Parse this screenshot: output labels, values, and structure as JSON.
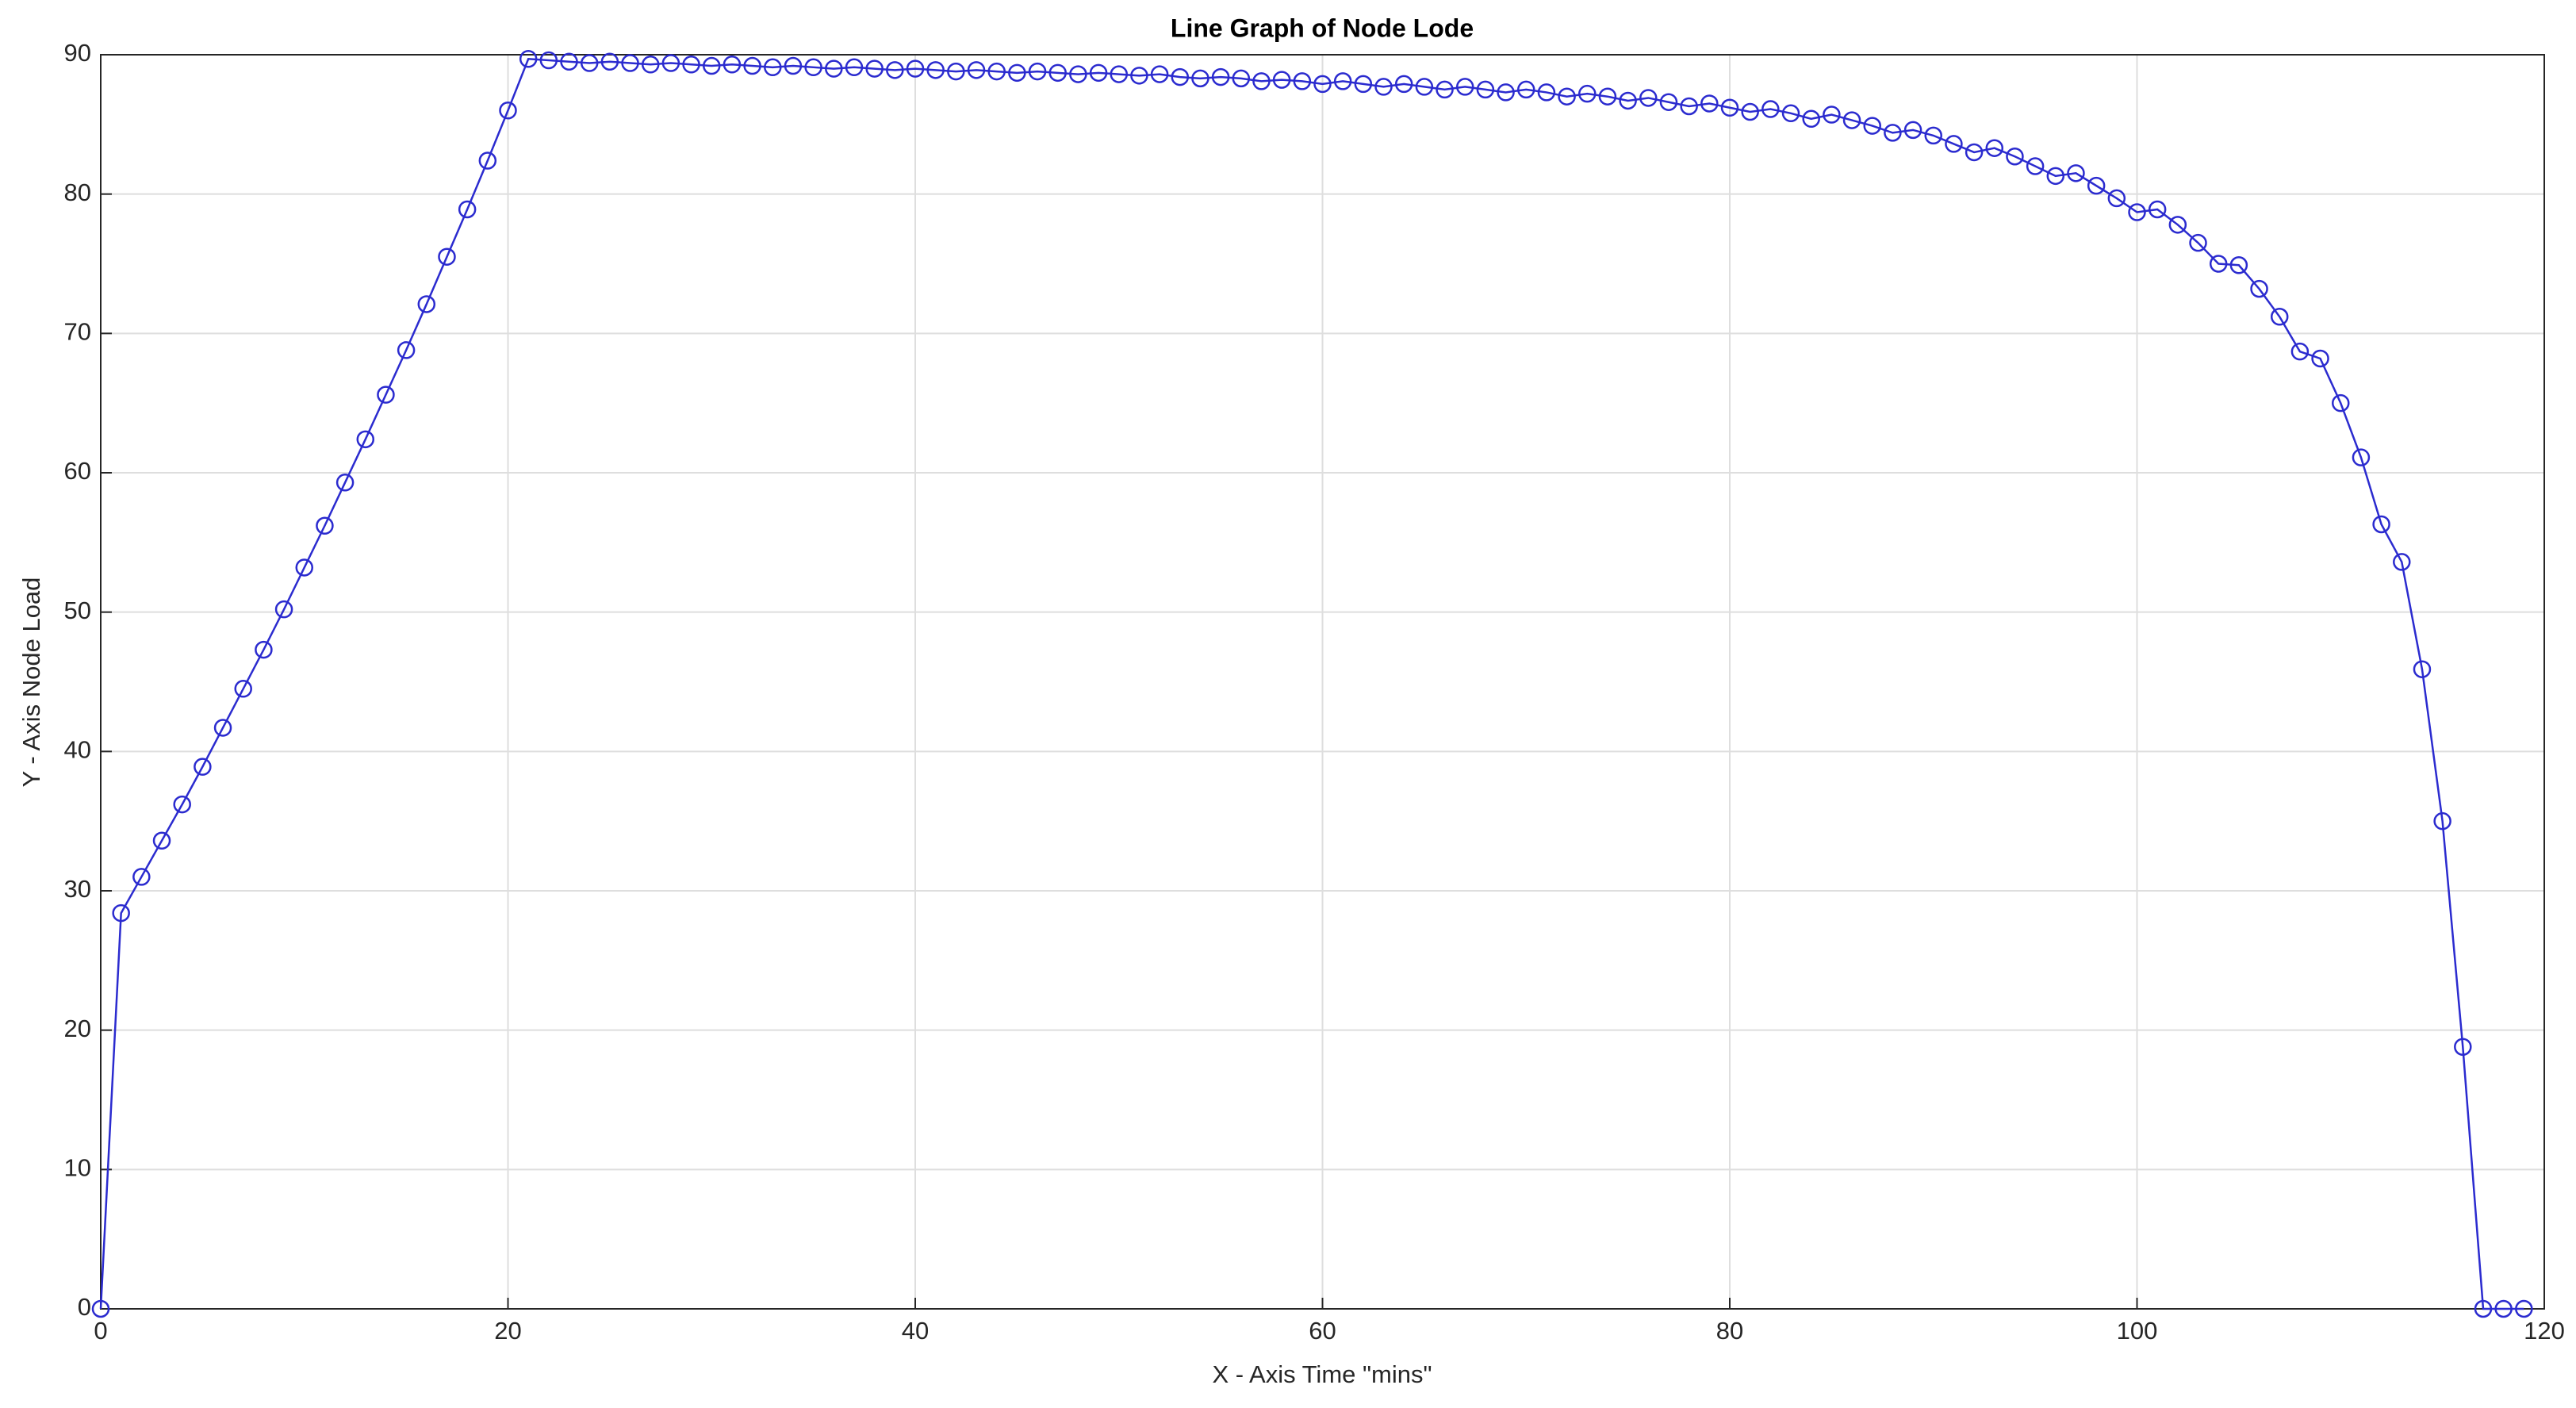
{
  "chart_data": {
    "type": "line",
    "title": "Line Graph of Node Lode",
    "x_label": "X - Axis Time \"mins\"",
    "y_label": "Y - Axis Node Load",
    "x": [
      0,
      1,
      2,
      3,
      4,
      5,
      6,
      7,
      8,
      9,
      10,
      11,
      12,
      13,
      14,
      15,
      16,
      17,
      18,
      19,
      20,
      21,
      22,
      23,
      24,
      25,
      26,
      27,
      28,
      29,
      30,
      31,
      32,
      33,
      34,
      35,
      36,
      37,
      38,
      39,
      40,
      41,
      42,
      43,
      44,
      45,
      46,
      47,
      48,
      49,
      50,
      51,
      52,
      53,
      54,
      55,
      56,
      57,
      58,
      59,
      60,
      61,
      62,
      63,
      64,
      65,
      66,
      67,
      68,
      69,
      70,
      71,
      72,
      73,
      74,
      75,
      76,
      77,
      78,
      79,
      80,
      81,
      82,
      83,
      84,
      85,
      86,
      87,
      88,
      89,
      90,
      91,
      92,
      93,
      94,
      95,
      96,
      97,
      98,
      99,
      100,
      101,
      102,
      103,
      104,
      105,
      106,
      107,
      108,
      109,
      110,
      111,
      112,
      113,
      114,
      115,
      116,
      117,
      118,
      119
    ],
    "series": [
      {
        "color": "#2b2bcf",
        "values": [
          0,
          28.4,
          31,
          33.6,
          36.2,
          38.9,
          41.7,
          44.5,
          47.3,
          50.2,
          53.2,
          56.2,
          59.3,
          62.4,
          65.6,
          68.8,
          72.1,
          75.5,
          78.9,
          82.4,
          86,
          89.7,
          89.6,
          89.5,
          89.4,
          89.5,
          89.4,
          89.3,
          89.4,
          89.3,
          89.2,
          89.3,
          89.2,
          89.1,
          89.2,
          89.1,
          89.0,
          89.1,
          89.0,
          88.9,
          89.0,
          88.9,
          88.8,
          88.9,
          88.8,
          88.7,
          88.8,
          88.7,
          88.6,
          88.7,
          88.6,
          88.5,
          88.6,
          88.4,
          88.3,
          88.4,
          88.3,
          88.1,
          88.2,
          88.1,
          87.9,
          88.1,
          87.9,
          87.7,
          87.9,
          87.7,
          87.5,
          87.7,
          87.5,
          87.3,
          87.5,
          87.3,
          87.0,
          87.2,
          87.0,
          86.7,
          86.9,
          86.6,
          86.3,
          86.5,
          86.2,
          85.9,
          86.1,
          85.8,
          85.4,
          85.7,
          85.3,
          84.9,
          84.4,
          84.6,
          84.2,
          83.6,
          83.0,
          83.3,
          82.7,
          82.0,
          81.3,
          81.5,
          80.6,
          79.7,
          78.7,
          78.9,
          77.8,
          76.5,
          75.0,
          74.9,
          73.2,
          71.2,
          68.7,
          68.2,
          65.0,
          61.1,
          56.3,
          53.6,
          45.9,
          35.0,
          18.8,
          0,
          0,
          0
        ]
      }
    ],
    "xlim": [
      0,
      120
    ],
    "xticks": [
      0,
      20,
      40,
      60,
      80,
      100,
      120
    ],
    "ylim": [
      0,
      90
    ],
    "yticks": [
      0,
      10,
      20,
      30,
      40,
      50,
      60,
      70,
      80,
      90
    ],
    "grid": true
  }
}
